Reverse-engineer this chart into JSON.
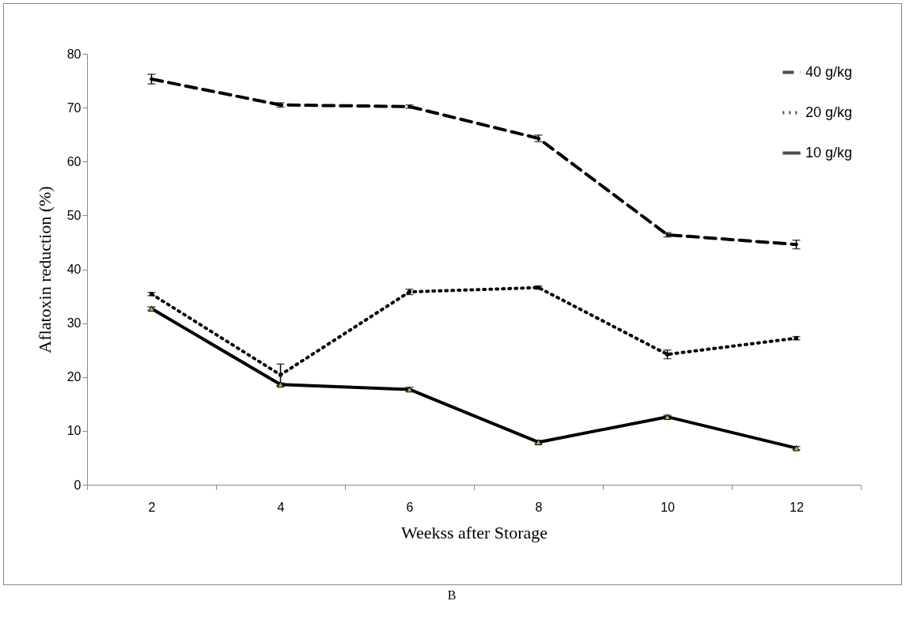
{
  "chart_data": {
    "type": "line",
    "xlabel": "Weekss after Storage",
    "ylabel": "Aflatoxin reduction (%)",
    "categories": [
      "2",
      "4",
      "6",
      "8",
      "10",
      "12"
    ],
    "series": [
      {
        "name": "40 g/kg",
        "color": "#000000",
        "line_style": "dashed",
        "marker": "circle",
        "values": [
          75.3,
          70.5,
          70.2,
          64.3,
          46.4,
          44.6
        ],
        "errors": [
          0.9,
          0.4,
          0.3,
          0.6,
          0.4,
          0.8
        ]
      },
      {
        "name": "20 g/kg",
        "color": "#000000",
        "line_style": "dotted",
        "marker": "square",
        "values": [
          35.4,
          20.4,
          35.8,
          36.6,
          24.2,
          27.2
        ],
        "errors": [
          0.3,
          2,
          0.5,
          0.3,
          0.8,
          0.3
        ]
      },
      {
        "name": "10 g/kg",
        "color": "#000000",
        "line_style": "solid",
        "marker": "triangle",
        "values": [
          32.7,
          18.6,
          17.7,
          7.9,
          12.6,
          6.8
        ],
        "errors": [
          0.3,
          0.3,
          0.4,
          0.3,
          0.3,
          0.3
        ]
      }
    ],
    "ylim": [
      0,
      80
    ],
    "yticks": [
      0,
      10,
      20,
      30,
      40,
      50,
      60,
      70,
      80
    ],
    "grid": false,
    "legend": "top right",
    "annotations": [
      "B"
    ]
  }
}
